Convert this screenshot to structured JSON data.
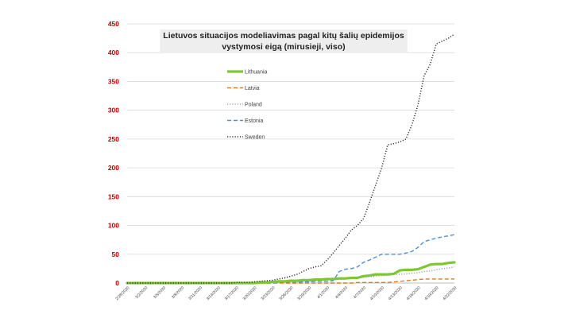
{
  "chart_data": {
    "type": "line",
    "title_lines": [
      "Lietuvos situacijos  modeliavimas pagal kitų šalių epidemijos",
      "vystymosi eigą (mirusieji, viso)"
    ],
    "ylim": [
      0,
      450
    ],
    "yticks": [
      "0",
      "50",
      "100",
      "150",
      "200",
      "250",
      "300",
      "350",
      "400",
      "450"
    ],
    "grid": true,
    "legend_position": "upper-left inside plot",
    "x": [
      "2/28/2020",
      "2/29/2020",
      "3/1/2020",
      "3/2/2020",
      "3/3/2020",
      "3/4/2020",
      "3/5/2020",
      "3/6/2020",
      "3/7/2020",
      "3/8/2020",
      "3/9/2020",
      "3/10/2020",
      "3/11/2020",
      "3/12/2020",
      "3/13/2020",
      "3/14/2020",
      "3/15/2020",
      "3/16/2020",
      "3/17/2020",
      "3/18/2020",
      "3/19/2020",
      "3/20/2020",
      "3/21/2020",
      "3/22/2020",
      "3/23/2020",
      "3/24/2020",
      "3/25/2020",
      "3/26/2020",
      "3/27/2020",
      "3/28/2020",
      "3/29/2020",
      "3/30/2020",
      "3/31/2020",
      "4/1/2020",
      "4/2/2020",
      "4/3/2020",
      "4/4/2020",
      "4/5/2020",
      "4/6/2020",
      "4/7/2020",
      "4/8/2020",
      "4/9/2020",
      "4/10/2020",
      "4/11/2020",
      "4/12/2020",
      "4/13/2020",
      "4/14/2020",
      "4/15/2020",
      "4/16/2020",
      "4/17/2020",
      "4/18/2020",
      "4/19/2020",
      "4/20/2020",
      "4/21/2020",
      "4/22/2020"
    ],
    "x_tick_labels": [
      "2/28/2020",
      "3/2/2020",
      "3/5/2020",
      "3/8/2020",
      "3/11/2020",
      "3/14/2020",
      "3/17/2020",
      "3/20/2020",
      "3/23/2020",
      "3/26/2020",
      "3/29/2020",
      "4/1/2020",
      "4/4/2020",
      "4/7/2020",
      "4/10/2020",
      "4/13/2020",
      "4/16/2020",
      "4/19/2020",
      "4/22/2020"
    ],
    "series": [
      {
        "name": "Lithuania",
        "color": "#7dc832",
        "style": "solid",
        "values": [
          0,
          0,
          0,
          0,
          0,
          0,
          0,
          0,
          0,
          0,
          0,
          0,
          0,
          0,
          0,
          0,
          0,
          0,
          0,
          0,
          0,
          0,
          1,
          1,
          2,
          3,
          3,
          4,
          4,
          5,
          5,
          6,
          6,
          7,
          7,
          8,
          8,
          9,
          9,
          12,
          13,
          15,
          15,
          15,
          16,
          22,
          23,
          23,
          24,
          28,
          32,
          33,
          33,
          35,
          36
        ]
      },
      {
        "name": "Latvia",
        "color": "#e07b22",
        "style": "dashed",
        "values": [
          0,
          0,
          0,
          0,
          0,
          0,
          0,
          0,
          0,
          0,
          0,
          0,
          0,
          0,
          0,
          0,
          0,
          0,
          0,
          0,
          0,
          0,
          0,
          0,
          0,
          0,
          0,
          0,
          0,
          0,
          0,
          0,
          0,
          0,
          0,
          0,
          0,
          0,
          1,
          1,
          1,
          1,
          1,
          1,
          2,
          3,
          4,
          5,
          6,
          7,
          7,
          7,
          7,
          7,
          7
        ]
      },
      {
        "name": "Poland",
        "color": "#a6a6a6",
        "style": "dotted",
        "values": [
          0,
          0,
          0,
          0,
          0,
          0,
          0,
          0,
          0,
          0,
          0,
          0,
          0,
          0,
          0,
          0,
          0,
          0,
          0,
          0,
          0,
          0,
          0,
          1,
          1,
          1,
          2,
          2,
          2,
          3,
          3,
          4,
          4,
          5,
          6,
          6,
          7,
          8,
          9,
          10,
          11,
          12,
          13,
          14,
          15,
          15,
          16,
          17,
          18,
          20,
          21,
          23,
          25,
          26,
          28
        ]
      },
      {
        "name": "Estonia",
        "color": "#4a90d9",
        "style": "dashed",
        "values": [
          0,
          0,
          0,
          0,
          0,
          0,
          0,
          0,
          0,
          0,
          0,
          0,
          0,
          0,
          0,
          0,
          0,
          0,
          0,
          0,
          0,
          0,
          0,
          0,
          0,
          1,
          1,
          1,
          1,
          2,
          2,
          3,
          3,
          3,
          4,
          20,
          24,
          25,
          28,
          36,
          40,
          45,
          50,
          50,
          50,
          50,
          52,
          55,
          62,
          72,
          75,
          78,
          80,
          82,
          84
        ]
      },
      {
        "name": "Sweden",
        "color": "#333333",
        "style": "dotted",
        "values": [
          0,
          0,
          0,
          0,
          0,
          0,
          0,
          0,
          0,
          0,
          0,
          0,
          0,
          0,
          0,
          0,
          0,
          0,
          1,
          1,
          1,
          2,
          3,
          4,
          5,
          7,
          9,
          12,
          15,
          20,
          25,
          28,
          30,
          40,
          52,
          65,
          78,
          92,
          100,
          112,
          140,
          170,
          200,
          240,
          242,
          245,
          250,
          275,
          310,
          360,
          380,
          415,
          420,
          425,
          432
        ]
      }
    ]
  }
}
